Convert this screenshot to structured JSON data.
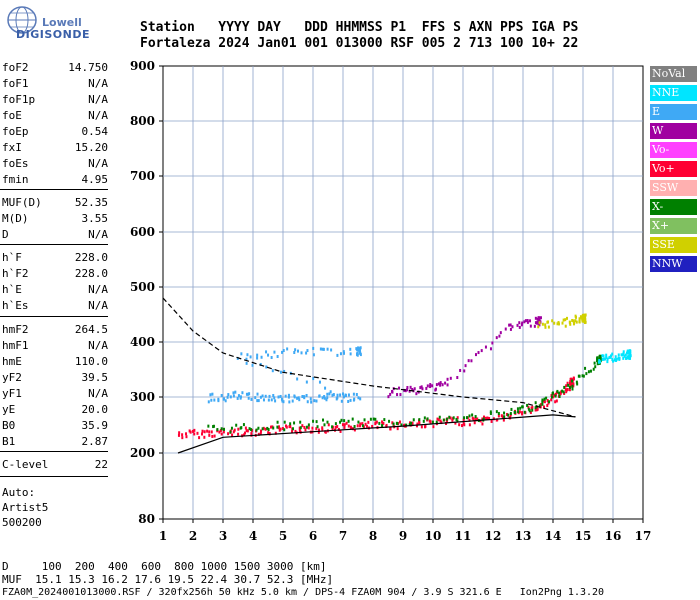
{
  "logo": {
    "line1": "Lowell",
    "line2": "DIGISONDE"
  },
  "header": {
    "line1": "Station   YYYY DAY   DDD HHMMSS P1  FFS S AXN PPS IGA PS",
    "line2": "Fortaleza 2024 Jan01 001 013000 RSF 005 2 713 100 10+ 22"
  },
  "params": [
    {
      "label": "foF2",
      "value": "14.750"
    },
    {
      "label": "foF1",
      "value": "N/A"
    },
    {
      "label": "foF1p",
      "value": "N/A"
    },
    {
      "label": "foE",
      "value": "N/A"
    },
    {
      "label": "foEp",
      "value": "0.54"
    },
    {
      "label": "fxI",
      "value": "15.20"
    },
    {
      "label": "foEs",
      "value": "N/A"
    },
    {
      "label": "fmin",
      "value": "4.95"
    },
    {
      "label": "MUF(D)",
      "value": "52.35"
    },
    {
      "label": "M(D)",
      "value": "3.55"
    },
    {
      "label": "D",
      "value": "N/A"
    },
    {
      "label": "h`F",
      "value": "228.0"
    },
    {
      "label": "h`F2",
      "value": "228.0"
    },
    {
      "label": "h`E",
      "value": "N/A"
    },
    {
      "label": "h`Es",
      "value": "N/A"
    },
    {
      "label": "hmF2",
      "value": "264.5"
    },
    {
      "label": "hmF1",
      "value": "N/A"
    },
    {
      "label": "hmE",
      "value": "110.0"
    },
    {
      "label": "yF2",
      "value": "39.5"
    },
    {
      "label": "yF1",
      "value": "N/A"
    },
    {
      "label": "yE",
      "value": "20.0"
    },
    {
      "label": "B0",
      "value": "35.9"
    },
    {
      "label": "B1",
      "value": "2.87"
    },
    {
      "label": "C-level",
      "value": "22"
    }
  ],
  "auto": {
    "line1": "Auto:",
    "line2": "Artist5",
    "line3": "500200"
  },
  "legend": [
    {
      "label": "NoVal",
      "color": "#808080"
    },
    {
      "label": "NNE",
      "color": "#00e5ff"
    },
    {
      "label": "E",
      "color": "#3fa9f5"
    },
    {
      "label": "W",
      "color": "#a000a0"
    },
    {
      "label": "Vo-",
      "color": "#ff40ff"
    },
    {
      "label": "Vo+",
      "color": "#ff0033"
    },
    {
      "label": "SSW",
      "color": "#ffb0b0"
    },
    {
      "label": "X-",
      "color": "#008000"
    },
    {
      "label": "X+",
      "color": "#80c060"
    },
    {
      "label": "SSE",
      "color": "#d0d000"
    },
    {
      "label": "NNW",
      "color": "#2020c0"
    }
  ],
  "footer": {
    "line1": "D     100  200  400  600  800 1000 1500 3000 [km]",
    "line2": "MUF  15.1 15.3 16.2 17.6 19.5 22.4 30.7 52.3 [MHz]",
    "line3": "FZA0M_2024001013000.RSF / 320fx256h 50 kHz 5.0 km / DPS-4 FZA0M 904 / 3.9 S 321.6 E   Ion2Png 1.3.20"
  },
  "chart_data": {
    "type": "scatter",
    "xlabel": "",
    "ylabel": "",
    "xlim": [
      1,
      17
    ],
    "ylim": [
      80,
      900
    ],
    "x_ticks": [
      1,
      2,
      3,
      4,
      5,
      6,
      7,
      8,
      9,
      10,
      11,
      12,
      13,
      14,
      15,
      16,
      17
    ],
    "y_ticks": [
      80,
      200,
      300,
      400,
      500,
      600,
      700,
      800,
      900
    ],
    "grid": true,
    "legend_position": "right",
    "series": [
      {
        "name": "Vo+",
        "points": [
          [
            1.5,
            235
          ],
          [
            2.5,
            238
          ],
          [
            3.5,
            240
          ],
          [
            4.5,
            242
          ],
          [
            5.5,
            245
          ],
          [
            6.5,
            247
          ],
          [
            7.5,
            250
          ],
          [
            8.5,
            252
          ],
          [
            9.5,
            255
          ],
          [
            10.5,
            258
          ],
          [
            11.5,
            260
          ],
          [
            12.5,
            268
          ],
          [
            13.5,
            285
          ],
          [
            14.2,
            305
          ],
          [
            14.6,
            330
          ]
        ]
      },
      {
        "name": "X-",
        "points": [
          [
            2.5,
            245
          ],
          [
            4.5,
            250
          ],
          [
            6.5,
            255
          ],
          [
            8.5,
            258
          ],
          [
            10.5,
            262
          ],
          [
            12.5,
            272
          ],
          [
            13.5,
            290
          ],
          [
            14.5,
            320
          ],
          [
            15.5,
            370
          ]
        ]
      },
      {
        "name": "E",
        "points": [
          [
            2.5,
            300
          ],
          [
            3.5,
            305
          ],
          [
            4.5,
            300
          ],
          [
            5.5,
            298
          ],
          [
            6.5,
            302
          ],
          [
            7.5,
            300
          ],
          [
            3.5,
            375
          ],
          [
            5.5,
            385
          ],
          [
            7.5,
            385
          ]
        ]
      },
      {
        "name": "W",
        "points": [
          [
            8.5,
            310
          ],
          [
            9.5,
            315
          ],
          [
            10.5,
            330
          ],
          [
            12.5,
            430
          ],
          [
            13.5,
            440
          ]
        ]
      },
      {
        "name": "SSE",
        "points": [
          [
            13.5,
            430
          ],
          [
            14.5,
            440
          ],
          [
            15,
            445
          ]
        ]
      },
      {
        "name": "NNE",
        "points": [
          [
            15.5,
            370
          ],
          [
            16,
            375
          ],
          [
            16.5,
            380
          ]
        ]
      }
    ],
    "profile_solid": [
      [
        1.5,
        200
      ],
      [
        3,
        228
      ],
      [
        6,
        238
      ],
      [
        9,
        248
      ],
      [
        12,
        260
      ],
      [
        14,
        268
      ],
      [
        14.75,
        264.5
      ]
    ],
    "profile_dashed": [
      [
        1,
        480
      ],
      [
        2,
        420
      ],
      [
        3,
        380
      ],
      [
        5,
        345
      ],
      [
        8,
        320
      ],
      [
        11,
        300
      ],
      [
        13,
        290
      ],
      [
        14.75,
        264.5
      ]
    ]
  }
}
